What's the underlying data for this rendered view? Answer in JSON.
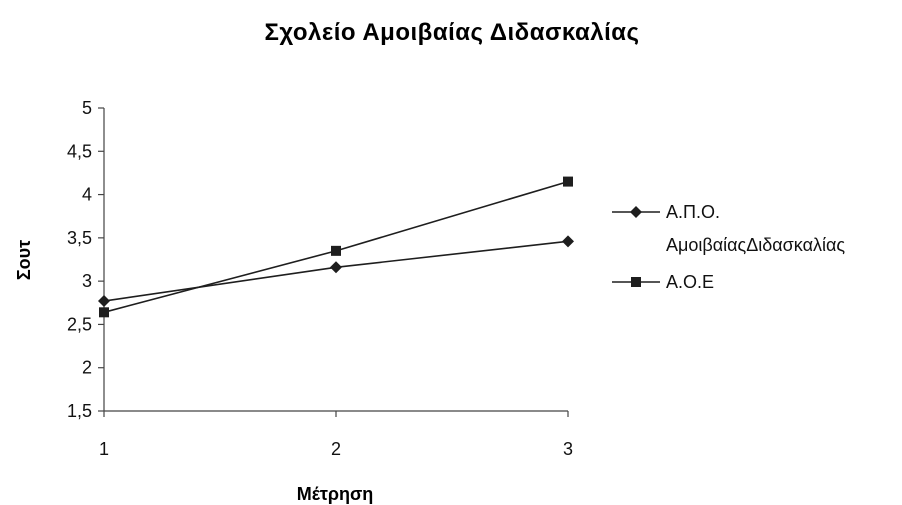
{
  "chart_data": {
    "type": "line",
    "title": "Σχολείο Αμοιβαίας Διδασκαλίας",
    "xlabel": "Μέτρηση",
    "ylabel": "Σουτ",
    "categories": [
      "1",
      "2",
      "3"
    ],
    "ylim": [
      1.5,
      5
    ],
    "yticks": [
      "1,5",
      "2",
      "2,5",
      "3",
      "3,5",
      "4",
      "4,5",
      "5"
    ],
    "grid": false,
    "legend_position": "right",
    "series": [
      {
        "name": "Α.Π.Ο. ΑμοιβαίαςΔιδασκαλίας",
        "legend_lines": [
          "Α.Π.Ο.",
          "ΑμοιβαίαςΔιδασκαλίας"
        ],
        "marker": "diamond",
        "values": [
          2.77,
          3.16,
          3.46
        ]
      },
      {
        "name": "Α.Ο.Ε",
        "legend_lines": [
          "Α.Ο.Ε"
        ],
        "marker": "square",
        "values": [
          2.64,
          3.35,
          4.15
        ]
      }
    ],
    "colors": {
      "line": "#1e1e1e",
      "axis": "#444444",
      "text": "#111111"
    }
  }
}
